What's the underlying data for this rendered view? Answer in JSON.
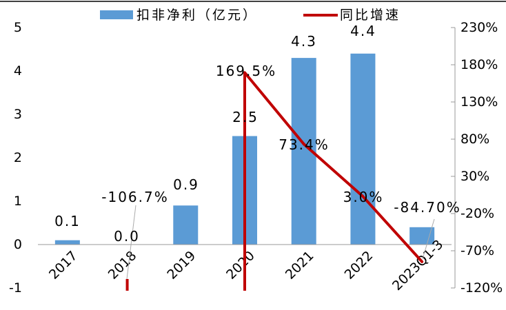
{
  "chart_data": {
    "type": "bar",
    "categories": [
      "2017",
      "2018",
      "2019",
      "2020",
      "2021",
      "2022",
      "2023Q1-3"
    ],
    "series": [
      {
        "name": "扣非净利（亿元）",
        "type": "bar",
        "axis": "left",
        "values": [
          0.1,
          0.0,
          0.9,
          2.5,
          4.3,
          4.4,
          0.4
        ],
        "labels": [
          "0.1",
          "0.0",
          "0.9",
          "2.5",
          "4.3",
          "4.4",
          ""
        ],
        "color": "#5b9bd5"
      },
      {
        "name": "同比增速",
        "type": "line",
        "axis": "right",
        "values": [
          null,
          -106.7,
          null,
          169.5,
          73.4,
          3.0,
          -84.7
        ],
        "labels": [
          "",
          "-106.7%",
          "",
          "169.5%",
          "73.4%",
          "3.0%",
          "-84.70%"
        ],
        "color": "#c00000"
      }
    ],
    "left_axis": {
      "ylim": [
        -1,
        5
      ],
      "ticks": [
        "-1",
        "0",
        "1",
        "2",
        "3",
        "4",
        "5"
      ]
    },
    "right_axis": {
      "ylim": [
        -120,
        230
      ],
      "ticks": [
        "-120%",
        "-70%",
        "-20%",
        "30%",
        "80%",
        "130%",
        "180%",
        "230%"
      ]
    },
    "legend": {
      "position": "top"
    },
    "grid": false
  }
}
